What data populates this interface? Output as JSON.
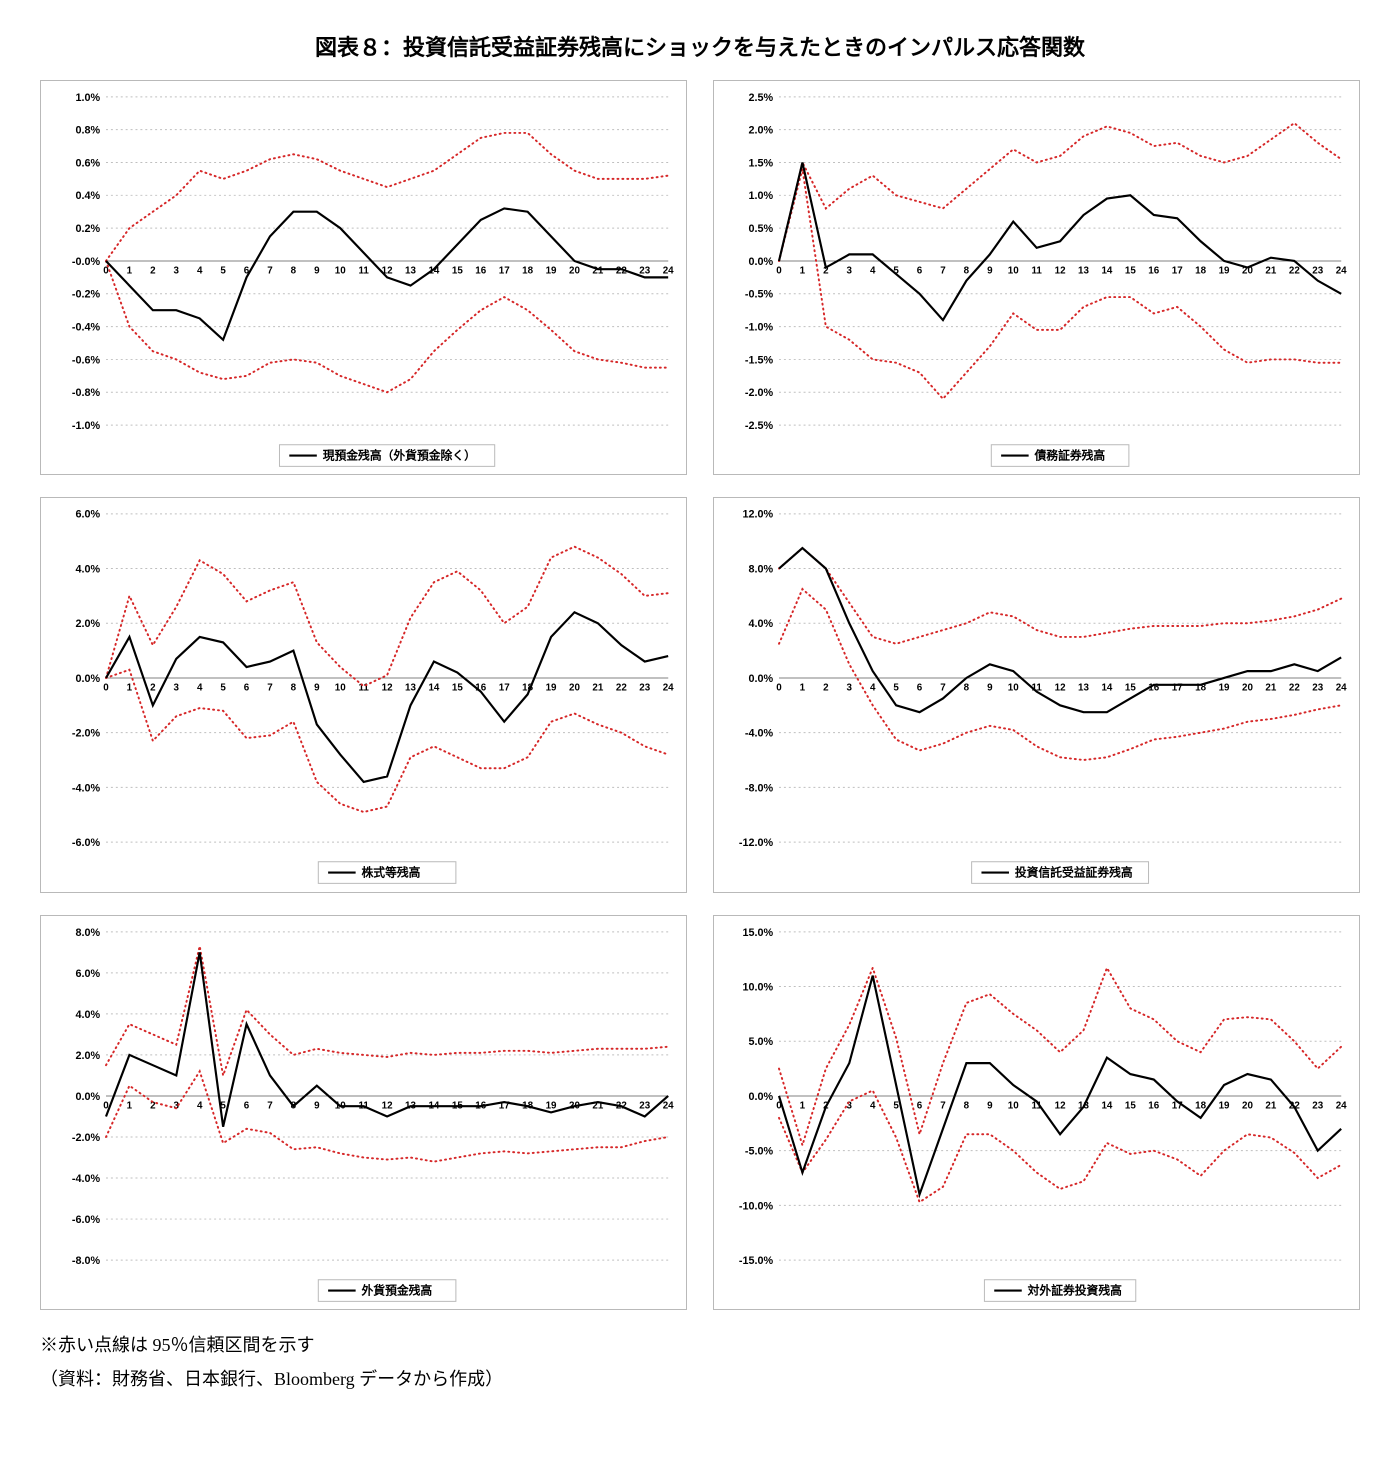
{
  "title": "図表８：投資信託受益証券残高にショックを与えたときのインパルス応答関数",
  "footnote1": "※赤い点線は 95％信頼区間を示す",
  "footnote2": "（資料：財務省、日本銀行、Bloomberg データから作成）",
  "global": {
    "panel_border_color": "#b9b9b9",
    "grid_color": "#bfbfbf",
    "main_line_color": "#000000",
    "ci_line_color": "#d62728",
    "main_line_width": 2.2,
    "ci_line_width": 2.0,
    "ci_dash": "1 4",
    "grid_dash": "2 3",
    "y_label_fontsize": 11,
    "x_label_fontsize": 10,
    "legend_fontsize": 12,
    "title_fontsize": 22,
    "x_categories": [
      0,
      1,
      2,
      3,
      4,
      5,
      6,
      7,
      8,
      9,
      10,
      11,
      12,
      13,
      14,
      15,
      16,
      17,
      18,
      19,
      20,
      21,
      22,
      23,
      24
    ]
  },
  "charts": [
    {
      "legend": "現預金残高（外貨預金除く）",
      "y_min": -1.0,
      "y_max": 1.0,
      "y_step": 0.2,
      "y_fmt": "pct1",
      "main": [
        0.0,
        -0.15,
        -0.3,
        -0.3,
        -0.35,
        -0.48,
        -0.1,
        0.15,
        0.3,
        0.3,
        0.2,
        0.05,
        -0.1,
        -0.15,
        -0.05,
        0.1,
        0.25,
        0.32,
        0.3,
        0.15,
        0.0,
        -0.05,
        -0.05,
        -0.1,
        -0.1
      ],
      "upper": [
        0.0,
        0.2,
        0.3,
        0.4,
        0.55,
        0.5,
        0.55,
        0.62,
        0.65,
        0.62,
        0.55,
        0.5,
        0.45,
        0.5,
        0.55,
        0.65,
        0.75,
        0.78,
        0.78,
        0.65,
        0.55,
        0.5,
        0.5,
        0.5,
        0.52
      ],
      "lower": [
        0.0,
        -0.4,
        -0.55,
        -0.6,
        -0.68,
        -0.72,
        -0.7,
        -0.62,
        -0.6,
        -0.62,
        -0.7,
        -0.75,
        -0.8,
        -0.72,
        -0.55,
        -0.42,
        -0.3,
        -0.22,
        -0.3,
        -0.42,
        -0.55,
        -0.6,
        -0.62,
        -0.65,
        -0.65
      ]
    },
    {
      "legend": "債務証券残高",
      "y_min": -2.5,
      "y_max": 2.5,
      "y_step": 0.5,
      "y_fmt": "pct1",
      "main": [
        0.0,
        1.5,
        -0.1,
        0.1,
        0.1,
        -0.2,
        -0.5,
        -0.9,
        -0.3,
        0.1,
        0.6,
        0.2,
        0.3,
        0.7,
        0.95,
        1.0,
        0.7,
        0.65,
        0.3,
        0.0,
        -0.1,
        0.05,
        0.0,
        -0.3,
        -0.5
      ],
      "upper": [
        0.0,
        1.5,
        0.8,
        1.1,
        1.3,
        1.0,
        0.9,
        0.8,
        1.1,
        1.4,
        1.7,
        1.5,
        1.6,
        1.9,
        2.05,
        1.95,
        1.75,
        1.8,
        1.6,
        1.5,
        1.6,
        1.85,
        2.1,
        1.8,
        1.55
      ],
      "lower": [
        0.0,
        1.4,
        -1.0,
        -1.2,
        -1.5,
        -1.55,
        -1.7,
        -2.1,
        -1.7,
        -1.3,
        -0.8,
        -1.05,
        -1.05,
        -0.7,
        -0.55,
        -0.55,
        -0.8,
        -0.7,
        -1.0,
        -1.35,
        -1.55,
        -1.5,
        -1.5,
        -1.55,
        -1.55
      ]
    },
    {
      "legend": "株式等残高",
      "y_min": -6.0,
      "y_max": 6.0,
      "y_step": 2.0,
      "y_fmt": "pct1",
      "main": [
        0.0,
        1.5,
        -1.0,
        0.7,
        1.5,
        1.3,
        0.4,
        0.6,
        1.0,
        -1.7,
        -2.8,
        -3.8,
        -3.6,
        -1.0,
        0.6,
        0.2,
        -0.5,
        -1.6,
        -0.6,
        1.5,
        2.4,
        2.0,
        1.2,
        0.6,
        0.8
      ],
      "upper": [
        0.0,
        3.0,
        1.2,
        2.6,
        4.3,
        3.8,
        2.8,
        3.2,
        3.5,
        1.3,
        0.4,
        -0.3,
        0.1,
        2.2,
        3.5,
        3.9,
        3.2,
        2.0,
        2.6,
        4.4,
        4.8,
        4.4,
        3.8,
        3.0,
        3.1
      ],
      "lower": [
        0.0,
        0.3,
        -2.3,
        -1.4,
        -1.1,
        -1.2,
        -2.2,
        -2.1,
        -1.6,
        -3.8,
        -4.6,
        -4.9,
        -4.7,
        -2.9,
        -2.5,
        -2.9,
        -3.3,
        -3.3,
        -2.9,
        -1.6,
        -1.3,
        -1.7,
        -2.0,
        -2.5,
        -2.8
      ]
    },
    {
      "legend": "投資信託受益証券残高",
      "y_min": -12.0,
      "y_max": 12.0,
      "y_step": 4.0,
      "y_fmt": "pct1",
      "main": [
        8.0,
        9.5,
        8.0,
        4.0,
        0.5,
        -2.0,
        -2.5,
        -1.5,
        0.0,
        1.0,
        0.5,
        -1.0,
        -2.0,
        -2.5,
        -2.5,
        -1.5,
        -0.5,
        -0.5,
        -0.5,
        0.0,
        0.5,
        0.5,
        1.0,
        0.5,
        1.5
      ],
      "upper": [
        8.0,
        9.5,
        8.0,
        5.5,
        3.0,
        2.5,
        3.0,
        3.5,
        4.0,
        4.8,
        4.5,
        3.5,
        3.0,
        3.0,
        3.3,
        3.6,
        3.8,
        3.8,
        3.8,
        4.0,
        4.0,
        4.2,
        4.5,
        5.0,
        5.8
      ],
      "lower": [
        2.5,
        6.5,
        5.0,
        1.0,
        -2.0,
        -4.5,
        -5.3,
        -4.8,
        -4.0,
        -3.5,
        -3.8,
        -5.0,
        -5.8,
        -6.0,
        -5.8,
        -5.2,
        -4.5,
        -4.3,
        -4.0,
        -3.7,
        -3.2,
        -3.0,
        -2.7,
        -2.3,
        -2.0
      ]
    },
    {
      "legend": "外貨預金残高",
      "y_min": -8.0,
      "y_max": 8.0,
      "y_step": 2.0,
      "y_fmt": "pct1",
      "main": [
        -1.0,
        2.0,
        1.5,
        1.0,
        7.0,
        -1.5,
        3.5,
        1.0,
        -0.5,
        0.5,
        -0.5,
        -0.5,
        -1.0,
        -0.5,
        -0.5,
        -0.5,
        -0.5,
        -0.3,
        -0.5,
        -0.8,
        -0.5,
        -0.3,
        -0.5,
        -1.0,
        0.0
      ],
      "upper": [
        1.5,
        3.5,
        3.0,
        2.5,
        7.3,
        1.0,
        4.2,
        3.0,
        2.0,
        2.3,
        2.1,
        2.0,
        1.9,
        2.1,
        2.0,
        2.1,
        2.1,
        2.2,
        2.2,
        2.1,
        2.2,
        2.3,
        2.3,
        2.3,
        2.4
      ],
      "lower": [
        -2.0,
        0.5,
        -0.3,
        -0.6,
        1.2,
        -2.3,
        -1.6,
        -1.8,
        -2.6,
        -2.5,
        -2.8,
        -3.0,
        -3.1,
        -3.0,
        -3.2,
        -3.0,
        -2.8,
        -2.7,
        -2.8,
        -2.7,
        -2.6,
        -2.5,
        -2.5,
        -2.2,
        -2.0
      ]
    },
    {
      "legend": "対外証券投資残高",
      "y_min": -15.0,
      "y_max": 15.0,
      "y_step": 5.0,
      "y_fmt": "pct1",
      "main": [
        0.0,
        -7.0,
        -1.0,
        3.0,
        11.0,
        1.0,
        -9.0,
        -3.0,
        3.0,
        3.0,
        1.0,
        -0.5,
        -3.5,
        -1.0,
        3.5,
        2.0,
        1.5,
        -0.5,
        -2.0,
        1.0,
        2.0,
        1.5,
        -1.0,
        -5.0,
        -3.0
      ],
      "upper": [
        2.5,
        -4.5,
        2.5,
        6.5,
        11.7,
        5.3,
        -3.5,
        3.0,
        8.5,
        9.3,
        7.5,
        6.0,
        4.0,
        6.0,
        11.7,
        8.0,
        7.0,
        5.0,
        4.0,
        7.0,
        7.2,
        7.0,
        5.0,
        2.5,
        4.5
      ],
      "lower": [
        -2.0,
        -7.0,
        -4.0,
        -0.5,
        0.5,
        -3.8,
        -9.7,
        -8.3,
        -3.5,
        -3.5,
        -5.0,
        -7.0,
        -8.5,
        -7.8,
        -4.3,
        -5.3,
        -5.0,
        -5.8,
        -7.3,
        -5.0,
        -3.5,
        -3.8,
        -5.2,
        -7.5,
        -6.3
      ]
    }
  ]
}
